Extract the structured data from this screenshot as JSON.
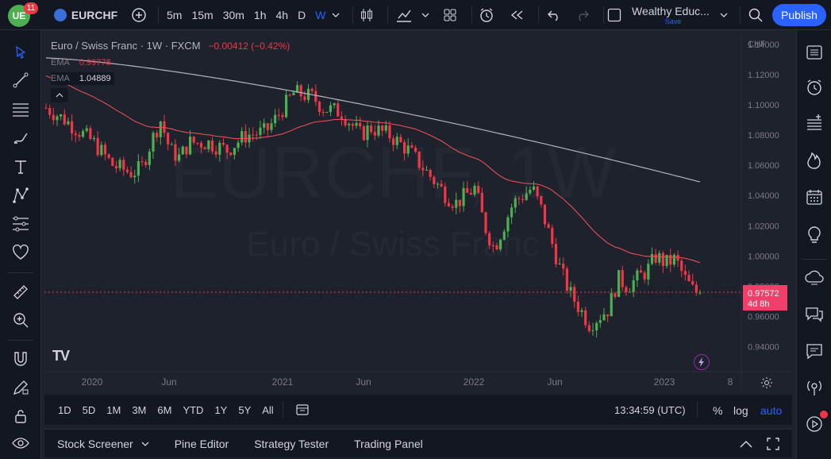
{
  "topbar": {
    "notif_count": "11",
    "symbol": "EURCHF",
    "intervals": [
      "5m",
      "15m",
      "30m",
      "1h",
      "4h",
      "D",
      "W"
    ],
    "active_interval": "W",
    "layout_name": "Wealthy Educ...",
    "layout_status": "Save",
    "publish_label": "Publish"
  },
  "legend": {
    "title": "Euro / Swiss Franc · 1W · FXCM",
    "change": "−0.00412 (−0.42%)",
    "ema1_label": "EMA",
    "ema1_value": "0.99778",
    "ema2_label": "EMA",
    "ema2_value": "1.04889"
  },
  "watermark": {
    "symbol": "EURCHF, 1W",
    "name": "Euro / Swiss Franc"
  },
  "price_axis": {
    "currency": "CHF",
    "ticks": [
      "1.14000",
      "1.12000",
      "1.10000",
      "1.08000",
      "1.06000",
      "1.04000",
      "1.02000",
      "1.00000",
      "0.98000",
      "0.96000",
      "0.94000"
    ],
    "last_price": "0.97572",
    "countdown": "4d 8h"
  },
  "time_axis": {
    "ticks": [
      "2020",
      "Jun",
      "2021",
      "Jun",
      "2022",
      "Jun",
      "2023",
      "8"
    ]
  },
  "timeframe_bar": {
    "ranges": [
      "1D",
      "5D",
      "1M",
      "3M",
      "6M",
      "YTD",
      "1Y",
      "5Y",
      "All"
    ],
    "clock": "13:34:59 (UTC)",
    "percent": "%",
    "log": "log",
    "auto": "auto"
  },
  "bottom_panel": {
    "tabs": [
      "Stock Screener",
      "Pine Editor",
      "Strategy Tester",
      "Trading Panel"
    ]
  },
  "colors": {
    "up": "#26a69a",
    "bull": "#4caf50",
    "down": "#ef5350",
    "bear": "#f23645",
    "ema_fast": "#e84e52",
    "ema_slow": "#d1d4dc",
    "accent": "#2962ff",
    "price_label": "#f23f6a"
  },
  "chart_data": {
    "type": "candlestick",
    "ema_fast_last": 0.99778,
    "ema_slow_last": 1.04889,
    "last_close": 0.97572,
    "ylim": [
      0.935,
      1.145
    ],
    "close_path": [
      [
        2019.85,
        1.098
      ],
      [
        2019.95,
        1.09
      ],
      [
        2020.1,
        1.075
      ],
      [
        2020.2,
        1.06
      ],
      [
        2020.3,
        1.055
      ],
      [
        2020.35,
        1.058
      ],
      [
        2020.4,
        1.075
      ],
      [
        2020.45,
        1.09
      ],
      [
        2020.5,
        1.07
      ],
      [
        2020.55,
        1.065
      ],
      [
        2020.6,
        1.075
      ],
      [
        2020.7,
        1.075
      ],
      [
        2020.8,
        1.07
      ],
      [
        2020.9,
        1.08
      ],
      [
        2021.0,
        1.082
      ],
      [
        2021.05,
        1.09
      ],
      [
        2021.15,
        1.108
      ],
      [
        2021.25,
        1.105
      ],
      [
        2021.3,
        1.098
      ],
      [
        2021.4,
        1.095
      ],
      [
        2021.5,
        1.08
      ],
      [
        2021.55,
        1.085
      ],
      [
        2021.65,
        1.08
      ],
      [
        2021.75,
        1.07
      ],
      [
        2021.85,
        1.055
      ],
      [
        2021.95,
        1.04
      ],
      [
        2022.0,
        1.035
      ],
      [
        2022.05,
        1.04
      ],
      [
        2022.1,
        1.045
      ],
      [
        2022.15,
        1.02
      ],
      [
        2022.2,
        1.005
      ],
      [
        2022.25,
        1.02
      ],
      [
        2022.3,
        1.035
      ],
      [
        2022.35,
        1.04
      ],
      [
        2022.4,
        1.045
      ],
      [
        2022.45,
        1.03
      ],
      [
        2022.5,
        1.01
      ],
      [
        2022.55,
        0.99
      ],
      [
        2022.6,
        0.975
      ],
      [
        2022.65,
        0.965
      ],
      [
        2022.7,
        0.955
      ],
      [
        2022.75,
        0.96
      ],
      [
        2022.8,
        0.965
      ],
      [
        2022.85,
        0.985
      ],
      [
        2022.9,
        0.98
      ],
      [
        2022.95,
        0.985
      ],
      [
        2023.0,
        0.99
      ],
      [
        2023.05,
        1.0
      ],
      [
        2023.1,
        0.995
      ],
      [
        2023.15,
        0.998
      ],
      [
        2023.2,
        0.985
      ],
      [
        2023.25,
        0.976
      ]
    ]
  }
}
